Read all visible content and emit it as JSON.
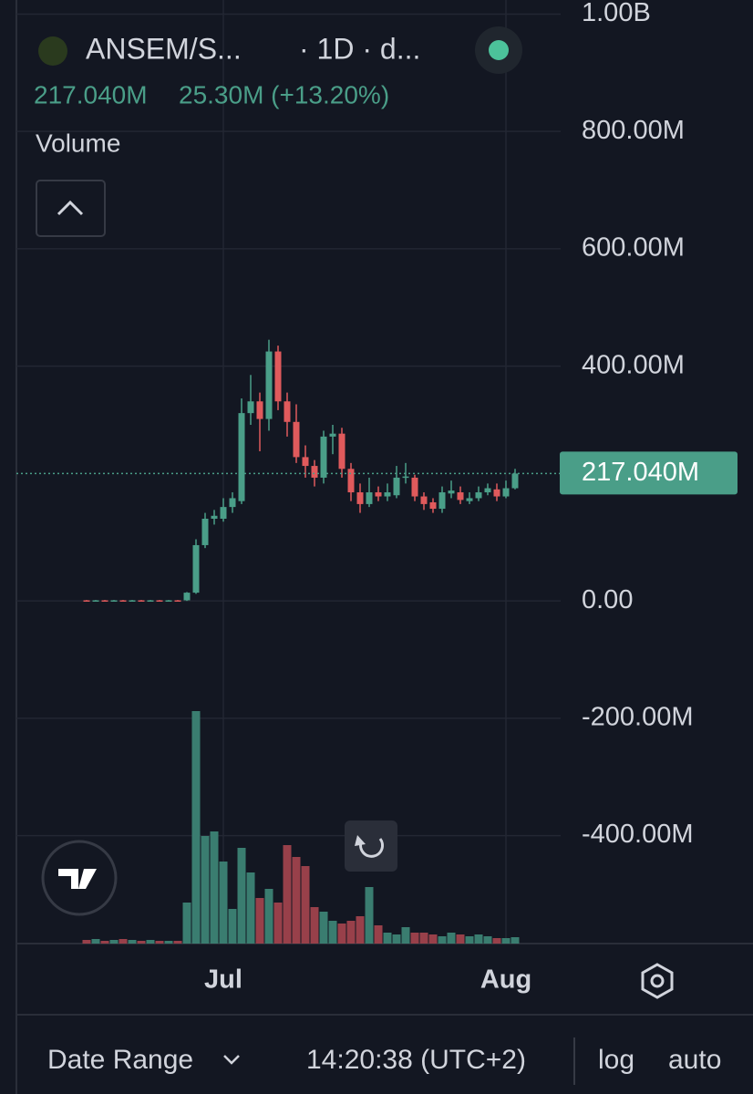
{
  "header": {
    "symbol": "ANSEM/S...",
    "interval": "· 1D · d...",
    "last": "217.040M",
    "change": "25.30M (+13.20%)"
  },
  "pane_label": "Volume",
  "footer": {
    "range": "Date Range",
    "time": "14:20:38 (UTC+2)",
    "log": "log",
    "auto": "auto"
  },
  "chart_data": {
    "type": "candlestick",
    "categories": [
      null,
      null,
      null,
      null,
      null,
      null,
      null,
      null,
      null,
      null,
      null,
      null,
      null,
      null,
      null,
      "Jul",
      null,
      null,
      null,
      null,
      null,
      null,
      null,
      null,
      null,
      null,
      null,
      null,
      null,
      null,
      null,
      null,
      null,
      null,
      null,
      null,
      null,
      null,
      null,
      null,
      null,
      null,
      null,
      null,
      null,
      null,
      "Aug",
      null
    ],
    "open": [
      1,
      0.5,
      1,
      0.5,
      1,
      0.5,
      1,
      0.5,
      1,
      0.5,
      1,
      1,
      14,
      95,
      140,
      140,
      160,
      170,
      320,
      340,
      310,
      425,
      340,
      305,
      245,
      230,
      210,
      280,
      285,
      225,
      185,
      165,
      185,
      178,
      180,
      210,
      210,
      178,
      168,
      157,
      183,
      185,
      170,
      175,
      185,
      190,
      178,
      192
    ],
    "high": [
      1.5,
      1.5,
      1.5,
      1.5,
      1.5,
      1.5,
      1.5,
      1.5,
      1.5,
      1.5,
      1.5,
      15,
      105,
      150,
      155,
      175,
      185,
      345,
      385,
      355,
      445,
      435,
      355,
      335,
      265,
      240,
      290,
      300,
      295,
      235,
      200,
      210,
      195,
      200,
      230,
      235,
      215,
      185,
      175,
      195,
      205,
      195,
      185,
      195,
      200,
      200,
      205,
      225
    ],
    "low": [
      0,
      0,
      0,
      0,
      0,
      0,
      0,
      0,
      0,
      0,
      0,
      0,
      12,
      90,
      130,
      135,
      150,
      165,
      300,
      255,
      290,
      325,
      280,
      235,
      210,
      195,
      200,
      250,
      210,
      170,
      150,
      160,
      170,
      170,
      175,
      200,
      170,
      155,
      150,
      150,
      175,
      165,
      165,
      170,
      180,
      170,
      175,
      190
    ],
    "close": [
      0.5,
      1,
      0.5,
      1,
      0.5,
      1,
      0.5,
      1,
      0.5,
      1,
      0.5,
      14,
      95,
      140,
      145,
      160,
      175,
      320,
      340,
      310,
      425,
      340,
      305,
      245,
      230,
      210,
      280,
      285,
      225,
      185,
      165,
      185,
      178,
      185,
      210,
      212,
      178,
      165,
      157,
      185,
      188,
      172,
      175,
      185,
      192,
      178,
      192,
      217.04
    ],
    "volume": [
      4,
      5,
      3,
      4,
      5,
      4,
      3,
      4,
      3,
      3,
      3,
      45,
      255,
      118,
      123,
      90,
      38,
      105,
      78,
      50,
      60,
      45,
      108,
      95,
      85,
      40,
      35,
      25,
      22,
      25,
      30,
      62,
      20,
      12,
      10,
      18,
      12,
      12,
      10,
      8,
      12,
      10,
      8,
      10,
      8,
      6,
      6,
      7
    ],
    "up_color": "#4a9e88",
    "down_color": "#e05a5c",
    "up_volume_color": "#3a7d70",
    "down_volume_color": "#98404a",
    "ylim": [
      -584,
      1024
    ],
    "yticks": [
      {
        "value": 1000,
        "label": "1.00B"
      },
      {
        "value": 800,
        "label": "800.00M"
      },
      {
        "value": 600,
        "label": "600.00M"
      },
      {
        "value": 400,
        "label": "400.00M"
      },
      {
        "value": 0,
        "label": "0.00"
      },
      {
        "value": -200,
        "label": "-200.00M"
      },
      {
        "value": -400,
        "label": "-400.00M"
      }
    ],
    "last_price_label": "217.040M",
    "grid": true
  }
}
